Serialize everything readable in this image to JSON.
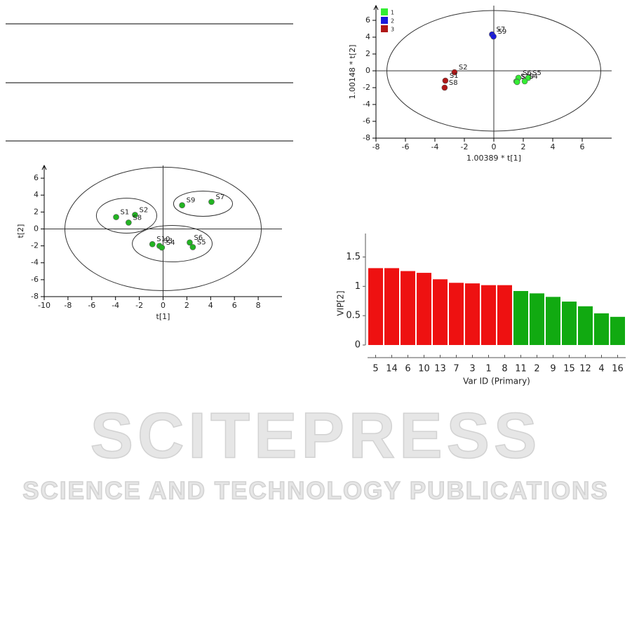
{
  "watermark": {
    "title": "SCITEPRESS",
    "subtitle": "SCIENCE AND TECHNOLOGY PUBLICATIONS"
  },
  "chart_data": [
    {
      "type": "scatter",
      "x_label": "t[1]",
      "y_label": "t[2]",
      "xlim": [
        -10,
        10
      ],
      "ylim": [
        -8,
        7.5
      ],
      "xticks": [
        -10,
        -8,
        -6,
        -4,
        -2,
        0,
        2,
        4,
        6,
        8
      ],
      "yticks": [
        -8,
        -6,
        -4,
        -2,
        0,
        2,
        4,
        6
      ],
      "ellipses": [
        {
          "cx": 0,
          "cy": 0,
          "rx": 8.26,
          "ry": 7.3
        },
        {
          "cx": -3.07,
          "cy": 1.57,
          "rx": 2.54,
          "ry": 2.07
        },
        {
          "cx": 3.36,
          "cy": 2.98,
          "rx": 2.48,
          "ry": 1.49
        },
        {
          "cx": 0.77,
          "cy": -1.74,
          "rx": 3.36,
          "ry": 2.15
        }
      ],
      "series": [
        {
          "color": "#22b422",
          "labels": [
            "S1",
            "S2",
            "S8",
            "S9",
            "S7",
            "S10",
            "S3",
            "S4",
            "S6",
            "S5"
          ],
          "x": [
            -3.95,
            -2.36,
            -2.9,
            1.6,
            4.07,
            -0.9,
            -0.3,
            -0.1,
            2.24,
            2.5
          ],
          "values": [
            1.4,
            1.66,
            0.75,
            2.8,
            3.2,
            -1.8,
            -2.0,
            -2.2,
            -1.6,
            -2.15
          ]
        }
      ]
    },
    {
      "type": "scatter",
      "x_label": "1.00389 * t[1]",
      "y_label": "1.00148 * t[2]",
      "xlim": [
        -8,
        8
      ],
      "ylim": [
        -8,
        7.75
      ],
      "xticks": [
        -8,
        -6,
        -4,
        -2,
        0,
        2,
        4,
        6
      ],
      "yticks": [
        -8,
        -6,
        -4,
        -2,
        0,
        2,
        4,
        6
      ],
      "legend": "upper left",
      "ellipses": [
        {
          "cx": 0,
          "cy": 0,
          "rx": 7.26,
          "ry": 7.17
        }
      ],
      "series": [
        {
          "name": "1",
          "color": "#33ee33",
          "labels": [
            "S6",
            "S10",
            "S3",
            "S5",
            "S4"
          ],
          "x": [
            1.67,
            1.53,
            1.58,
            2.34,
            2.1
          ],
          "values": [
            -0.83,
            -1.25,
            -1.33,
            -0.83,
            -1.25
          ]
        },
        {
          "name": "2",
          "color": "#1a1add",
          "labels": [
            "S7",
            "S9"
          ],
          "x": [
            -0.12,
            -0.02
          ],
          "values": [
            4.33,
            4.08
          ]
        },
        {
          "name": "3",
          "color": "#b01818",
          "labels": [
            "S2",
            "S1",
            "S8"
          ],
          "x": [
            -2.67,
            -3.29,
            -3.34
          ],
          "values": [
            -0.17,
            -1.17,
            -2.0
          ]
        }
      ]
    },
    {
      "type": "bar",
      "x_label": "Var ID (Primary)",
      "y_label": "VIP[2]",
      "ylim": [
        0,
        1.9
      ],
      "yticks": [
        0,
        0.5,
        1,
        1.5
      ],
      "categories": [
        "5",
        "14",
        "6",
        "10",
        "13",
        "7",
        "3",
        "1",
        "8",
        "11",
        "2",
        "9",
        "15",
        "12",
        "4",
        "16"
      ],
      "values": [
        1.31,
        1.31,
        1.26,
        1.23,
        1.12,
        1.06,
        1.05,
        1.02,
        1.02,
        0.92,
        0.88,
        0.82,
        0.74,
        0.66,
        0.54,
        0.48
      ],
      "colors": [
        "#ee1111",
        "#ee1111",
        "#ee1111",
        "#ee1111",
        "#ee1111",
        "#ee1111",
        "#ee1111",
        "#ee1111",
        "#ee1111",
        "#11aa11",
        "#11aa11",
        "#11aa11",
        "#11aa11",
        "#11aa11",
        "#11aa11",
        "#11aa11"
      ]
    }
  ]
}
